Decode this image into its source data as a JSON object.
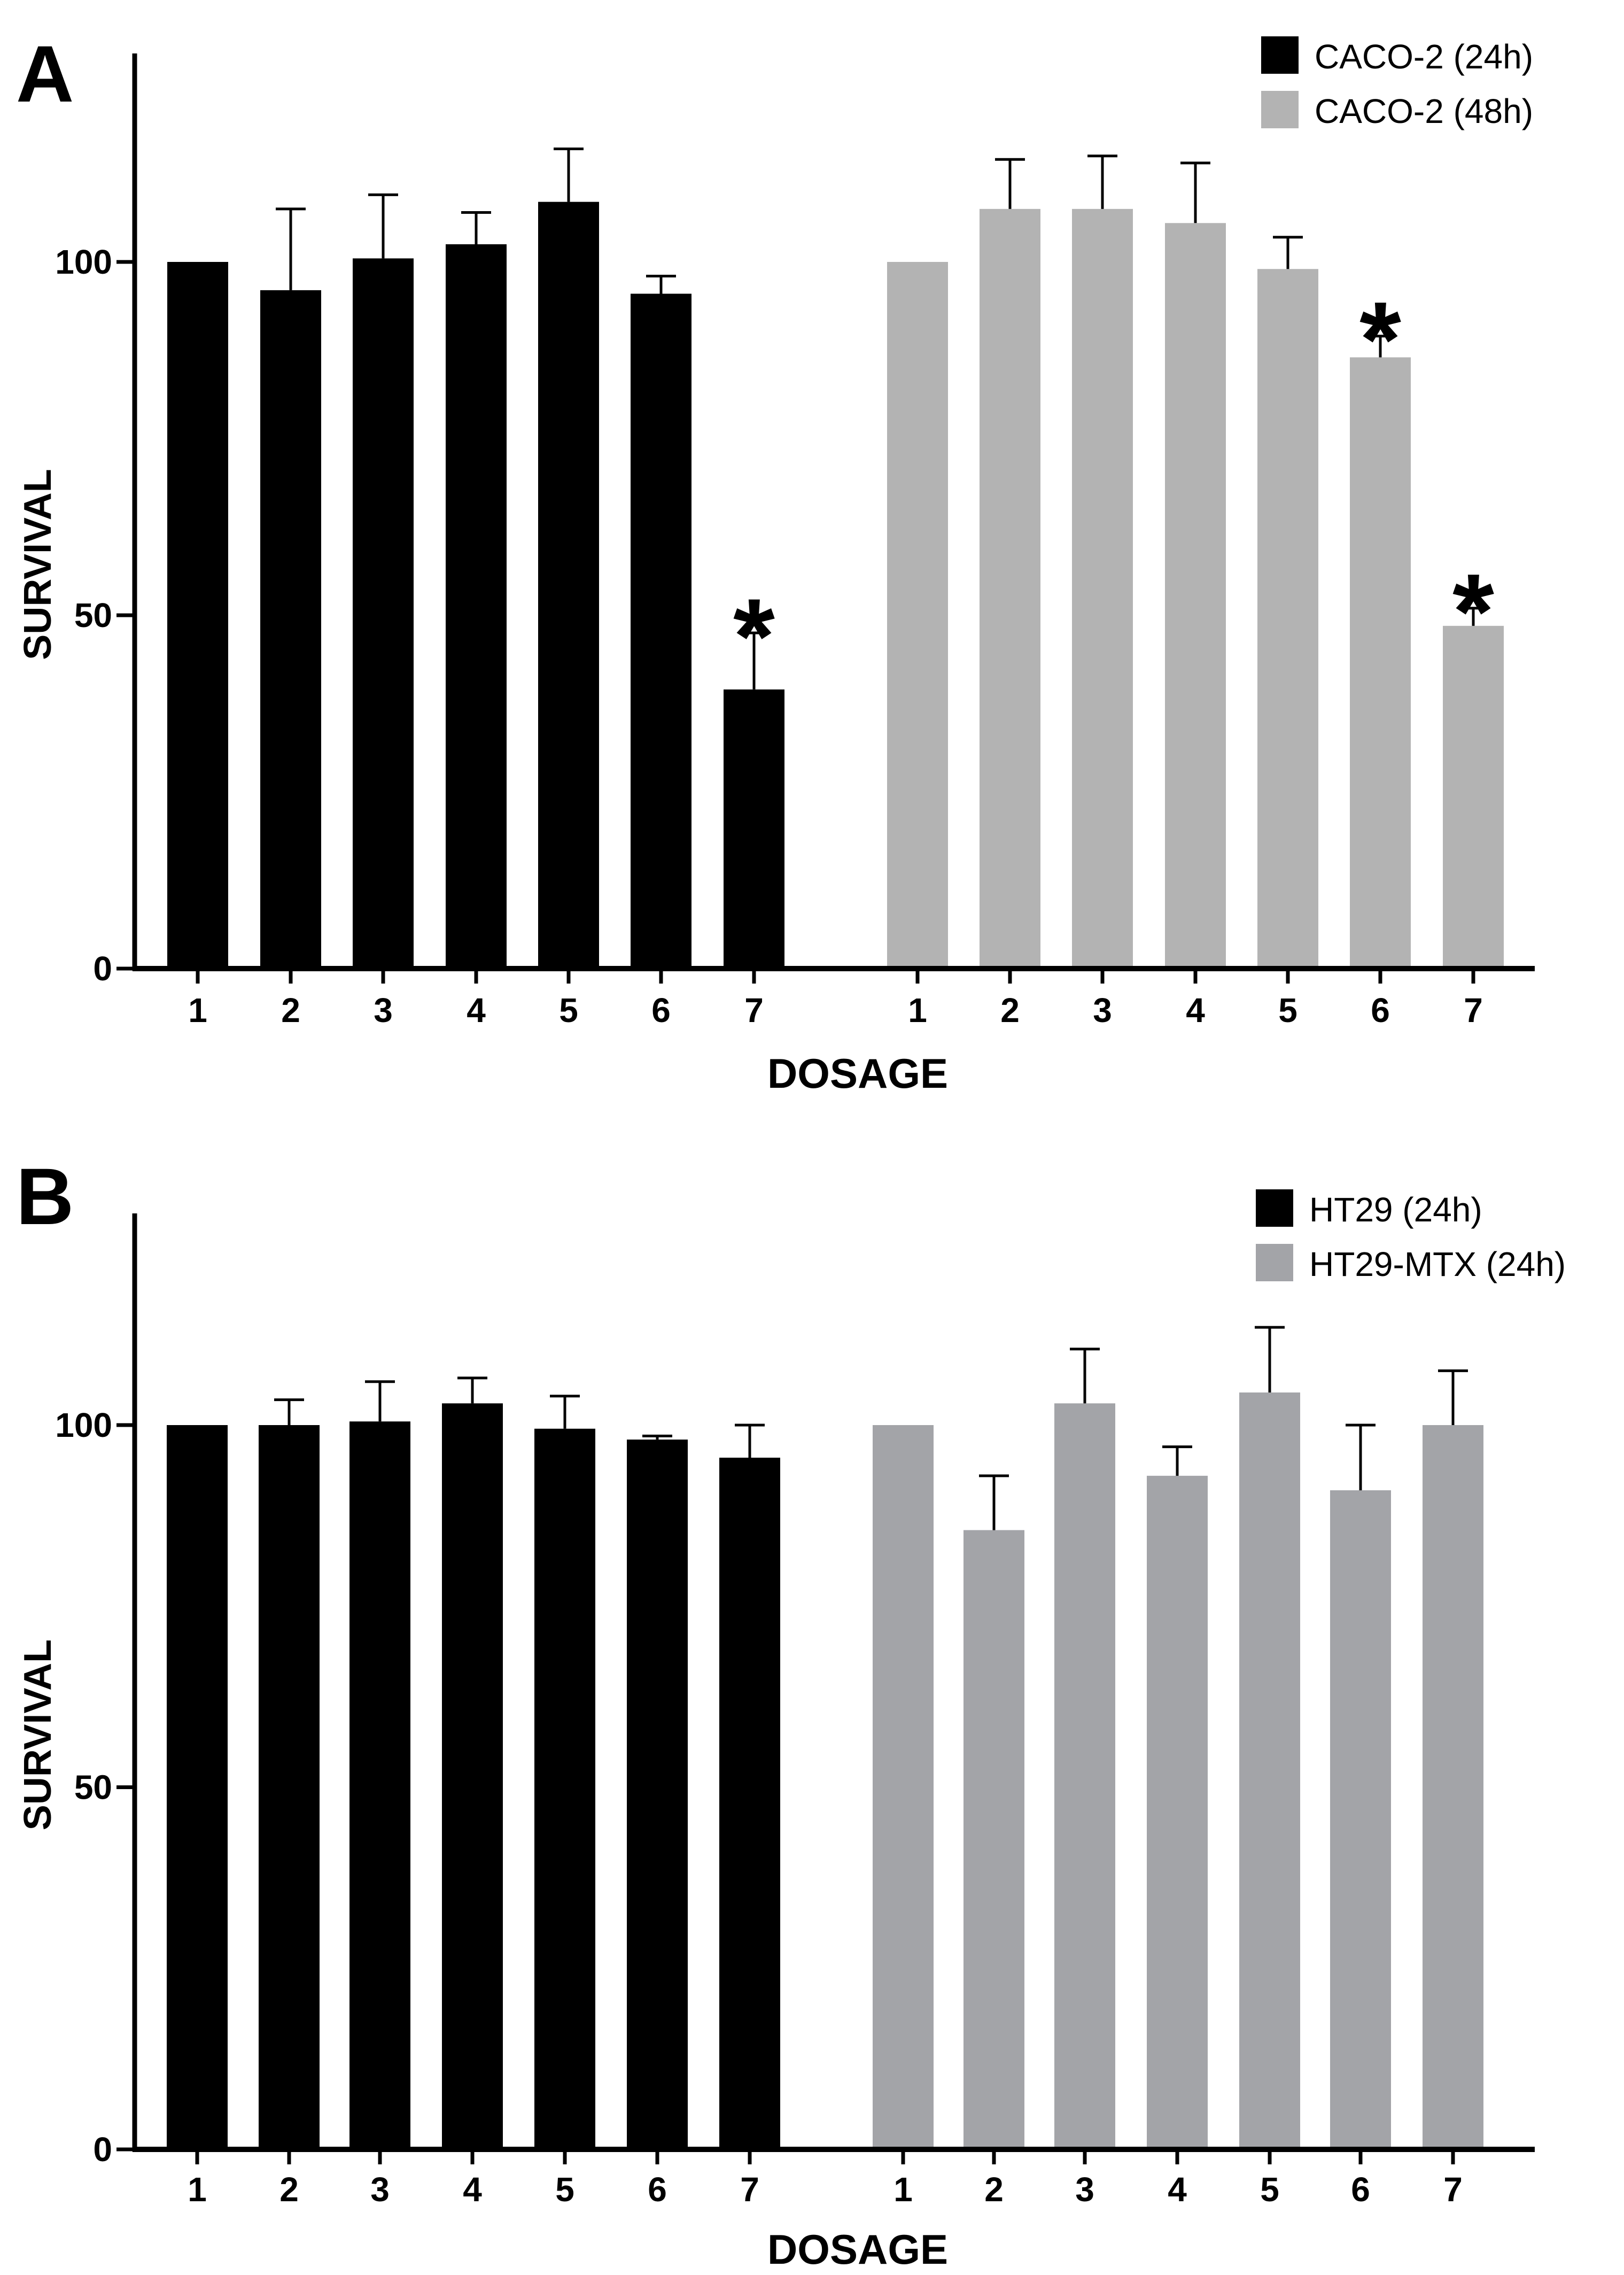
{
  "chart_data": [
    {
      "panel": "A",
      "type": "bar",
      "xlabel": "DOSAGE",
      "ylabel": "SURVIVAL",
      "ylim": [
        0,
        130
      ],
      "yticks": [
        0,
        50,
        100
      ],
      "grid": false,
      "legend_position": "top-right",
      "series": [
        {
          "name": "CACO-2 (24h)",
          "color": "#000000",
          "categories": [
            "1",
            "2",
            "3",
            "4",
            "5",
            "6",
            "7"
          ],
          "values": [
            100,
            96,
            100.5,
            102.5,
            108.5,
            95.5,
            39.5
          ],
          "errors": [
            0,
            11.5,
            9,
            4.5,
            7.5,
            2.5,
            8
          ],
          "significant": [
            false,
            false,
            false,
            false,
            false,
            false,
            true
          ]
        },
        {
          "name": "CACO-2 (48h)",
          "color": "#b3b3b3",
          "categories": [
            "1",
            "2",
            "3",
            "4",
            "5",
            "6",
            "7"
          ],
          "values": [
            100,
            107.5,
            107.5,
            105.5,
            99,
            86.5,
            48.5
          ],
          "errors": [
            0,
            7,
            7.5,
            8.5,
            4.5,
            3,
            2.5
          ],
          "significant": [
            false,
            false,
            false,
            false,
            false,
            true,
            true
          ]
        }
      ],
      "significance_marker": "*"
    },
    {
      "panel": "B",
      "type": "bar",
      "xlabel": "DOSAGE",
      "ylabel": "SURVIVAL",
      "ylim": [
        0,
        130
      ],
      "yticks": [
        0,
        50,
        100
      ],
      "grid": false,
      "legend_position": "top-right",
      "series": [
        {
          "name": "HT29 (24h)",
          "color": "#000000",
          "categories": [
            "1",
            "2",
            "3",
            "4",
            "5",
            "6",
            "7"
          ],
          "values": [
            100,
            100,
            100.5,
            103,
            99.5,
            98,
            95.5
          ],
          "errors": [
            0,
            3.5,
            5.5,
            3.5,
            4.5,
            0.5,
            4.5
          ],
          "significant": [
            false,
            false,
            false,
            false,
            false,
            false,
            false
          ]
        },
        {
          "name": "HT29-MTX (24h)",
          "color": "#a3a4a8",
          "categories": [
            "1",
            "2",
            "3",
            "4",
            "5",
            "6",
            "7"
          ],
          "values": [
            100,
            85.5,
            103,
            93,
            104.5,
            91,
            100
          ],
          "errors": [
            0,
            7.5,
            7.5,
            4,
            9,
            9,
            7.5
          ],
          "significant": [
            false,
            false,
            false,
            false,
            false,
            false,
            false
          ]
        }
      ],
      "significance_marker": "*"
    }
  ]
}
